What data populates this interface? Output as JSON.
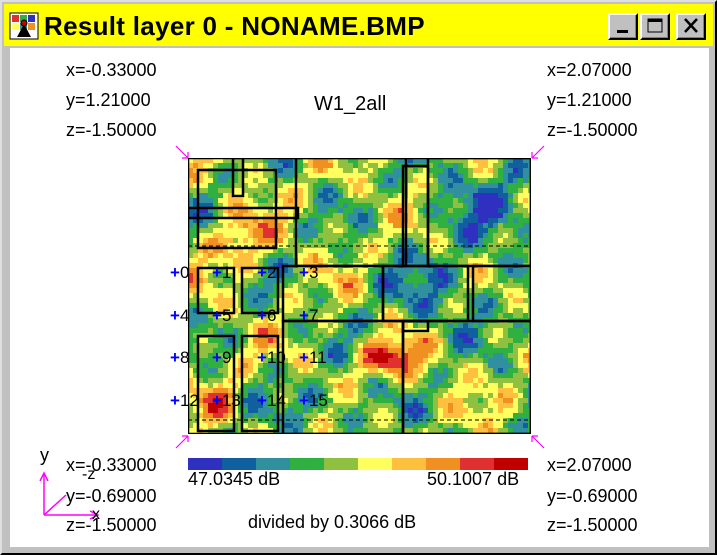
{
  "window": {
    "title": "Result layer 0 - NONAME.BMP",
    "title_bg": "#ffff00",
    "buttons": [
      "minimize",
      "maximize",
      "close"
    ]
  },
  "plot": {
    "name": "W1_2all",
    "top_left": {
      "x": "x=-0.33000",
      "y": "y=1.21000",
      "z": "z=-1.50000"
    },
    "top_right": {
      "x": "x=2.07000",
      "y": "y=1.21000",
      "z": "z=-1.50000"
    },
    "bottom_left": {
      "x": "x=-0.33000",
      "y": "y=-0.69000",
      "z": "z=-1.50000"
    },
    "bottom_right": {
      "x": "x=2.07000",
      "y": "y=-0.69000",
      "z": "z=-1.50000"
    },
    "axes_labels": {
      "y": "y",
      "minus_z": "-z",
      "x": "x"
    },
    "legend_min": "47.0345 dB",
    "legend_max": "50.1007 dB",
    "divided_by": "divided by 0.3066 dB",
    "legend_colors": [
      "#3030c0",
      "#1060a0",
      "#3090a0",
      "#30b040",
      "#90c040",
      "#ffff60",
      "#ffc040",
      "#f09020",
      "#e03030",
      "#c00000"
    ],
    "probes": [
      "0",
      "1",
      "2",
      "3",
      "4",
      "5",
      "6",
      "7",
      "8",
      "9",
      "10",
      "11",
      "12",
      "13",
      "14",
      "15"
    ]
  }
}
